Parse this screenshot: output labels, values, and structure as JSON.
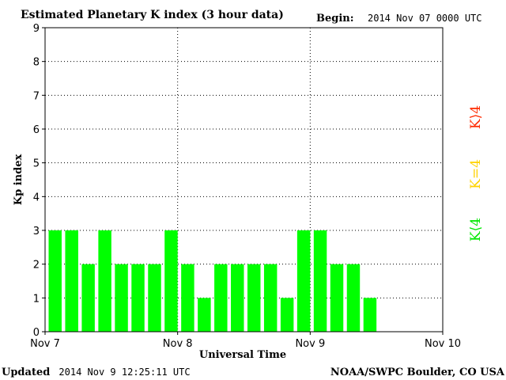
{
  "header": {
    "title": "Estimated Planetary K index (3 hour data)",
    "begin_label": "Begin:",
    "begin_value": "2014 Nov 07 0000 UTC"
  },
  "footer": {
    "updated_label": "Updated",
    "updated_value": "2014 Nov  9 12:25:11 UTC",
    "credit": "NOAA/SWPC Boulder, CO USA"
  },
  "legend": [
    {
      "text": "K⟨4",
      "color": "#00e800"
    },
    {
      "text": "K=4",
      "color": "#ffd200"
    },
    {
      "text": "K⟩4",
      "color": "#ff2a00"
    }
  ],
  "colors": {
    "bar_quiet": "#00ff00",
    "grid": "#000000",
    "axis": "#000000"
  },
  "chart_data": {
    "type": "bar",
    "title": "Estimated Planetary K index (3 hour data)",
    "xlabel": "Universal Time",
    "ylabel": "Kp index",
    "ylim": [
      0,
      9
    ],
    "yticks": [
      "0",
      "1",
      "2",
      "3",
      "4",
      "5",
      "6",
      "7",
      "8",
      "9"
    ],
    "xticks": [
      "Nov 7",
      "Nov 8",
      "Nov 9",
      "Nov 10"
    ],
    "slots_total": 24,
    "values": [
      3,
      3,
      2,
      3,
      2,
      2,
      2,
      3,
      2,
      1,
      2,
      2,
      2,
      2,
      1,
      3,
      3,
      2,
      2,
      1
    ],
    "grid": "dotted",
    "legend_position": "right"
  }
}
